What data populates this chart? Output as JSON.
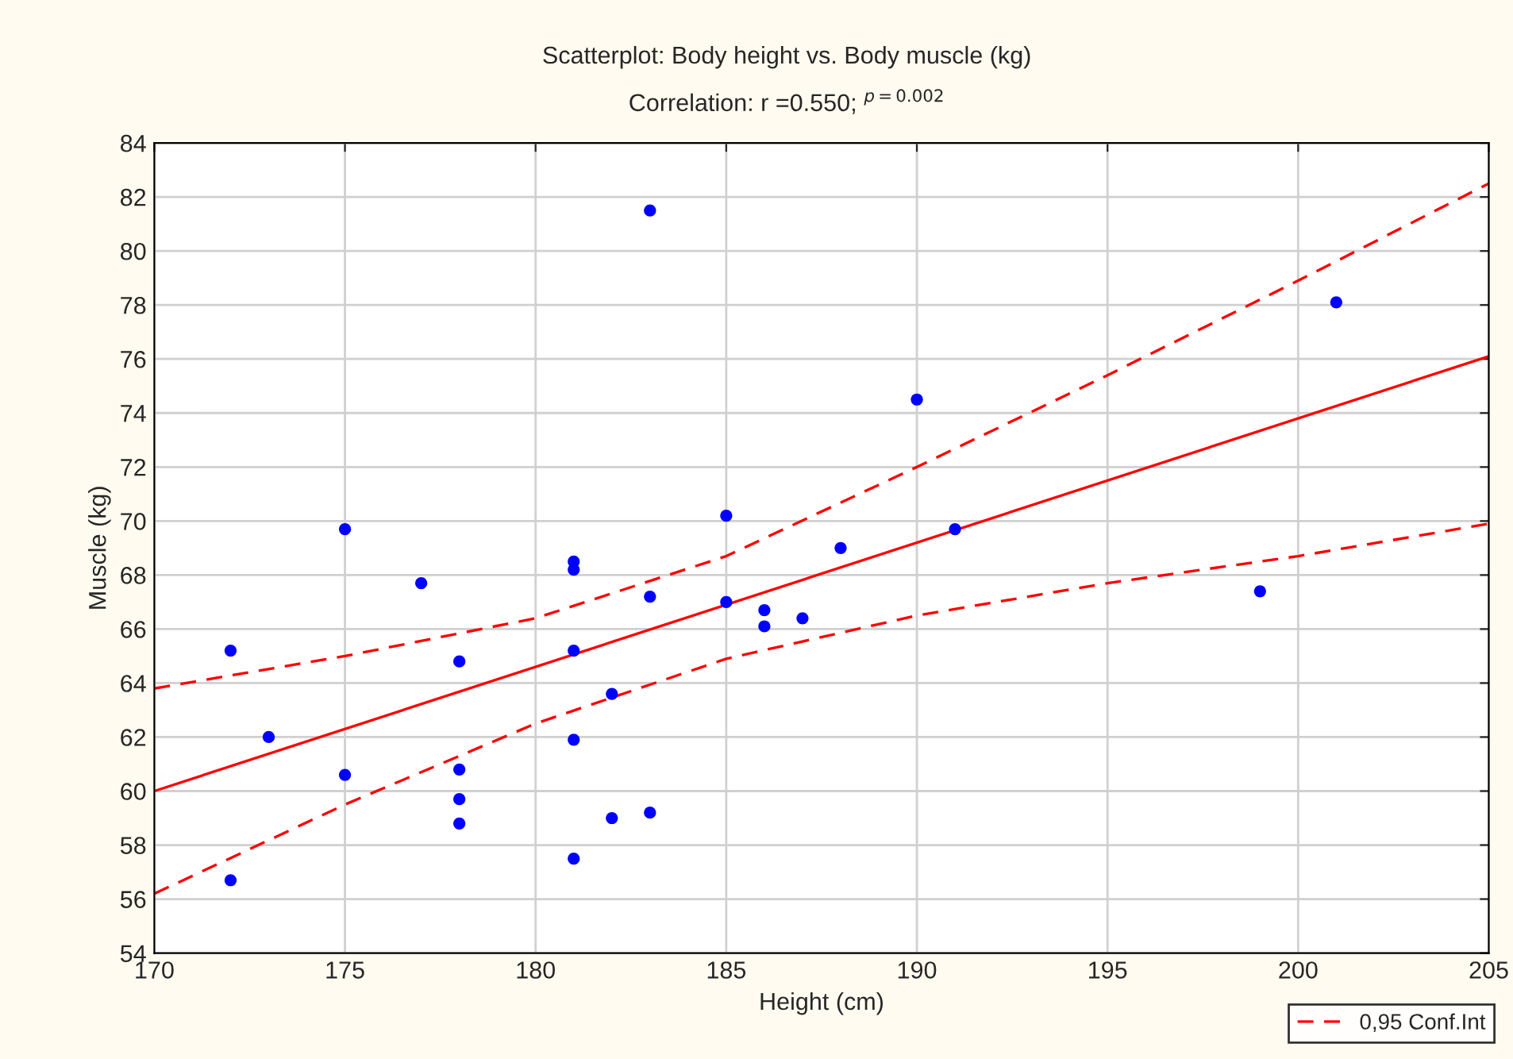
{
  "chart_data": {
    "type": "scatter",
    "title": "Scatterplot: Body height vs. Body muscle (kg)",
    "subtitle": "Correlation: r =0.550; $^{p=0.002}$",
    "xlabel": "Height (cm)",
    "ylabel": "Muscle (kg)",
    "xlim": [
      170,
      205
    ],
    "xticks": [
      170,
      175,
      180,
      185,
      190,
      195,
      200,
      205
    ],
    "ylim": [
      54,
      84
    ],
    "yticks": [
      54,
      56,
      58,
      60,
      62,
      64,
      66,
      68,
      70,
      72,
      74,
      76,
      78,
      80,
      82,
      84
    ],
    "grid": true,
    "legend": "bottom right",
    "series": [
      {
        "marker": "circle",
        "color": "#0000ff",
        "x": [
          172,
          172,
          173,
          175,
          175,
          177,
          178,
          178,
          178,
          178,
          181,
          181,
          181,
          181,
          181,
          182,
          182,
          183,
          183,
          183,
          185,
          185,
          186,
          186,
          187,
          188,
          190,
          191,
          199,
          201
        ],
        "values": [
          65.2,
          56.7,
          62.0,
          69.7,
          60.6,
          67.7,
          64.8,
          60.8,
          59.7,
          58.8,
          68.5,
          65.2,
          61.9,
          57.5,
          68.2,
          63.6,
          59.0,
          81.5,
          67.2,
          59.2,
          70.2,
          67.0,
          66.7,
          66.1,
          66.4,
          69.0,
          74.5,
          69.7,
          67.4,
          78.1
        ]
      },
      {
        "type": "line",
        "color": "#ff0000",
        "line_style": "solid",
        "x": [
          170,
          205
        ],
        "values": [
          60.0,
          76.1
        ]
      },
      {
        "type": "line",
        "name": "0,95 Conf.Int",
        "color": "#ff0000",
        "line_style": "dashed",
        "x": [
          170,
          175,
          180,
          185,
          190,
          195,
          200,
          205
        ],
        "values": [
          63.8,
          65.0,
          66.4,
          68.7,
          72.0,
          75.4,
          78.9,
          82.5
        ]
      },
      {
        "type": "line",
        "color": "#ff0000",
        "line_style": "dashed",
        "x": [
          170,
          175,
          180,
          185,
          190,
          195,
          200,
          205
        ],
        "values": [
          56.2,
          59.5,
          62.5,
          64.9,
          66.5,
          67.7,
          68.7,
          69.9
        ]
      }
    ]
  }
}
